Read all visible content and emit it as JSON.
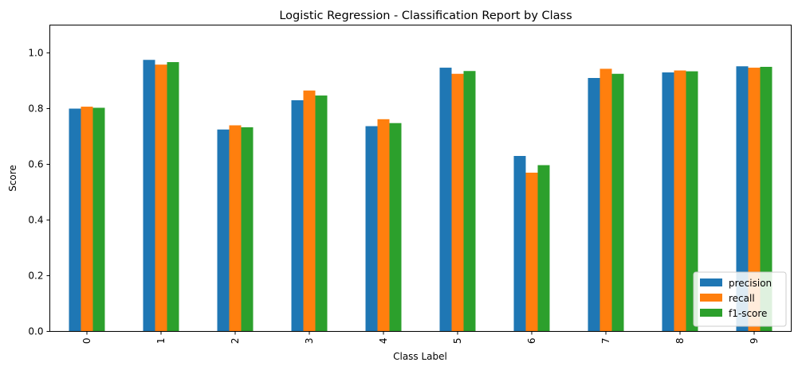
{
  "chart_data": {
    "type": "bar",
    "title": "Logistic Regression - Classification Report by Class",
    "xlabel": "Class Label",
    "ylabel": "Score",
    "categories": [
      "0",
      "1",
      "2",
      "3",
      "4",
      "5",
      "6",
      "7",
      "8",
      "9"
    ],
    "ylim": [
      0,
      1.1
    ],
    "yticks": [
      "0.0",
      "0.2",
      "0.4",
      "0.6",
      "0.8",
      "1.0"
    ],
    "grid": false,
    "legend_position": "lower-right",
    "series": [
      {
        "name": "precision",
        "color": "#1f77b4",
        "values": [
          0.8,
          0.975,
          0.725,
          0.83,
          0.737,
          0.947,
          0.63,
          0.91,
          0.93,
          0.952
        ]
      },
      {
        "name": "recall",
        "color": "#ff7f0e",
        "values": [
          0.807,
          0.958,
          0.74,
          0.865,
          0.762,
          0.925,
          0.57,
          0.943,
          0.937,
          0.947
        ]
      },
      {
        "name": "f1-score",
        "color": "#2ca02c",
        "values": [
          0.803,
          0.967,
          0.733,
          0.847,
          0.748,
          0.935,
          0.597,
          0.925,
          0.934,
          0.95
        ]
      }
    ]
  }
}
